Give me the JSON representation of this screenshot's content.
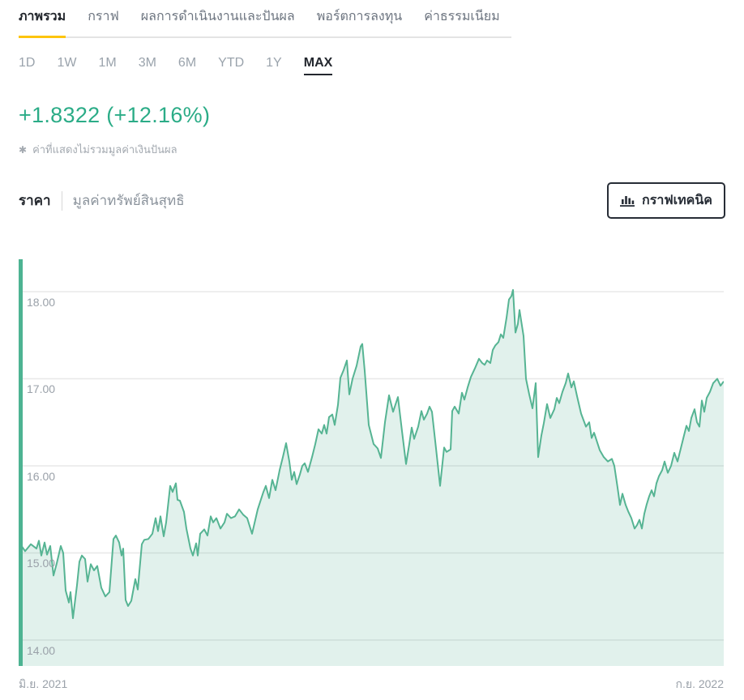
{
  "tabs": {
    "items": [
      {
        "label": "ภาพรวม",
        "active": true
      },
      {
        "label": "กราฟ",
        "active": false
      },
      {
        "label": "ผลการดำเนินงานและปันผล",
        "active": false
      },
      {
        "label": "พอร์ตการลงทุน",
        "active": false
      },
      {
        "label": "ค่าธรรมเนียม",
        "active": false
      }
    ]
  },
  "ranges": {
    "items": [
      {
        "label": "1D"
      },
      {
        "label": "1W"
      },
      {
        "label": "1M"
      },
      {
        "label": "3M"
      },
      {
        "label": "6M"
      },
      {
        "label": "YTD"
      },
      {
        "label": "1Y"
      },
      {
        "label": "MAX"
      }
    ],
    "active": "MAX"
  },
  "change": {
    "value": "+1.8322 (+12.16%)"
  },
  "note": {
    "marker": "✱",
    "text": "ค่าที่แสดงไม่รวมมูลค่าเงินปันผล"
  },
  "series_toggle": {
    "price_label": "ราคา",
    "nav_label": "มูลค่าทรัพย์สินสุทธิ"
  },
  "technical_button": {
    "label": "กราฟเทคนิค",
    "icon": "bar-chart-icon"
  },
  "colors": {
    "accent_yellow": "#fdc40e",
    "positive_green": "#2bac87",
    "inactive_gray": "#9aa3ac",
    "dark_text": "#22262c"
  },
  "chart_data": {
    "type": "area",
    "title": "",
    "xlabel": "",
    "ylabel": "",
    "legend": "none",
    "grid": "horizontal",
    "x_axis": {
      "start_label": "มิ.ย. 2021",
      "end_label": "ก.ย. 2022"
    },
    "y_axis": {
      "ticks": [
        {
          "value": 18.0,
          "label": "18.00"
        },
        {
          "value": 17.0,
          "label": "17.00"
        },
        {
          "value": 16.0,
          "label": "16.00"
        },
        {
          "value": 15.0,
          "label": "15.00"
        },
        {
          "value": 14.0,
          "label": "14.00"
        }
      ]
    },
    "y_scale": {
      "min": 13.702,
      "max": 18.372
    },
    "line_color": "#56b493",
    "fill_color": "rgba(86,180,147,0.18)",
    "grid_color": "#e8e8e8",
    "axis_bar_color": "#4db392",
    "points": [
      [
        0,
        15.13
      ],
      [
        8,
        15.02
      ],
      [
        15,
        15.1
      ],
      [
        22,
        15.05
      ],
      [
        25,
        15.14
      ],
      [
        28,
        14.97
      ],
      [
        32,
        15.12
      ],
      [
        35,
        14.98
      ],
      [
        39,
        15.08
      ],
      [
        43,
        14.74
      ],
      [
        47,
        14.88
      ],
      [
        52,
        15.08
      ],
      [
        55,
        15.0
      ],
      [
        58,
        14.57
      ],
      [
        62,
        14.43
      ],
      [
        64,
        14.55
      ],
      [
        67,
        14.25
      ],
      [
        72,
        14.63
      ],
      [
        75,
        14.9
      ],
      [
        78,
        14.97
      ],
      [
        82,
        14.93
      ],
      [
        85,
        14.67
      ],
      [
        89,
        14.87
      ],
      [
        93,
        14.8
      ],
      [
        97,
        14.85
      ],
      [
        102,
        14.6
      ],
      [
        107,
        14.5
      ],
      [
        112,
        14.55
      ],
      [
        117,
        15.16
      ],
      [
        120,
        15.2
      ],
      [
        124,
        15.12
      ],
      [
        127,
        14.97
      ],
      [
        129,
        15.05
      ],
      [
        132,
        14.46
      ],
      [
        135,
        14.39
      ],
      [
        139,
        14.45
      ],
      [
        144,
        14.7
      ],
      [
        147,
        14.58
      ],
      [
        152,
        15.1
      ],
      [
        155,
        15.15
      ],
      [
        160,
        15.16
      ],
      [
        165,
        15.22
      ],
      [
        169,
        15.4
      ],
      [
        172,
        15.25
      ],
      [
        175,
        15.42
      ],
      [
        179,
        15.19
      ],
      [
        182,
        15.35
      ],
      [
        187,
        15.77
      ],
      [
        190,
        15.7
      ],
      [
        194,
        15.8
      ],
      [
        196,
        15.61
      ],
      [
        199,
        15.6
      ],
      [
        204,
        15.47
      ],
      [
        207,
        15.28
      ],
      [
        212,
        15.05
      ],
      [
        215,
        14.97
      ],
      [
        219,
        15.11
      ],
      [
        221,
        14.97
      ],
      [
        224,
        15.22
      ],
      [
        229,
        15.27
      ],
      [
        233,
        15.2
      ],
      [
        237,
        15.42
      ],
      [
        240,
        15.35
      ],
      [
        244,
        15.4
      ],
      [
        249,
        15.28
      ],
      [
        254,
        15.35
      ],
      [
        257,
        15.45
      ],
      [
        262,
        15.4
      ],
      [
        267,
        15.42
      ],
      [
        272,
        15.5
      ],
      [
        277,
        15.44
      ],
      [
        282,
        15.4
      ],
      [
        288,
        15.22
      ],
      [
        295,
        15.5
      ],
      [
        302,
        15.7
      ],
      [
        305,
        15.77
      ],
      [
        309,
        15.63
      ],
      [
        313,
        15.84
      ],
      [
        317,
        15.72
      ],
      [
        322,
        15.95
      ],
      [
        326,
        16.1
      ],
      [
        330,
        16.26
      ],
      [
        334,
        16.05
      ],
      [
        337,
        15.84
      ],
      [
        340,
        15.93
      ],
      [
        343,
        15.79
      ],
      [
        347,
        15.9
      ],
      [
        350,
        16.0
      ],
      [
        353,
        16.03
      ],
      [
        357,
        15.93
      ],
      [
        362,
        16.1
      ],
      [
        366,
        16.25
      ],
      [
        370,
        16.42
      ],
      [
        374,
        16.37
      ],
      [
        377,
        16.47
      ],
      [
        380,
        16.37
      ],
      [
        383,
        16.56
      ],
      [
        387,
        16.59
      ],
      [
        390,
        16.47
      ],
      [
        394,
        16.7
      ],
      [
        397,
        17.01
      ],
      [
        401,
        17.1
      ],
      [
        405,
        17.21
      ],
      [
        408,
        16.82
      ],
      [
        412,
        17.0
      ],
      [
        417,
        17.15
      ],
      [
        422,
        17.37
      ],
      [
        424,
        17.4
      ],
      [
        427,
        17.09
      ],
      [
        432,
        16.47
      ],
      [
        438,
        16.25
      ],
      [
        443,
        16.2
      ],
      [
        447,
        16.09
      ],
      [
        452,
        16.5
      ],
      [
        457,
        16.81
      ],
      [
        462,
        16.62
      ],
      [
        468,
        16.79
      ],
      [
        473,
        16.4
      ],
      [
        478,
        16.02
      ],
      [
        482,
        16.25
      ],
      [
        485,
        16.44
      ],
      [
        488,
        16.31
      ],
      [
        493,
        16.45
      ],
      [
        497,
        16.63
      ],
      [
        500,
        16.53
      ],
      [
        504,
        16.6
      ],
      [
        507,
        16.68
      ],
      [
        510,
        16.62
      ],
      [
        515,
        16.2
      ],
      [
        520,
        15.77
      ],
      [
        525,
        16.21
      ],
      [
        528,
        16.16
      ],
      [
        533,
        16.19
      ],
      [
        535,
        16.63
      ],
      [
        538,
        16.68
      ],
      [
        543,
        16.6
      ],
      [
        547,
        16.84
      ],
      [
        550,
        16.76
      ],
      [
        554,
        16.9
      ],
      [
        558,
        17.02
      ],
      [
        563,
        17.12
      ],
      [
        568,
        17.23
      ],
      [
        572,
        17.18
      ],
      [
        575,
        17.16
      ],
      [
        578,
        17.21
      ],
      [
        582,
        17.18
      ],
      [
        585,
        17.33
      ],
      [
        588,
        17.38
      ],
      [
        592,
        17.42
      ],
      [
        595,
        17.51
      ],
      [
        598,
        17.47
      ],
      [
        602,
        17.7
      ],
      [
        605,
        17.91
      ],
      [
        608,
        17.95
      ],
      [
        610,
        18.02
      ],
      [
        613,
        17.53
      ],
      [
        616,
        17.63
      ],
      [
        618,
        17.79
      ],
      [
        620,
        17.67
      ],
      [
        623,
        17.49
      ],
      [
        626,
        17.0
      ],
      [
        630,
        16.82
      ],
      [
        634,
        16.66
      ],
      [
        638,
        16.95
      ],
      [
        641,
        16.1
      ],
      [
        645,
        16.35
      ],
      [
        648,
        16.49
      ],
      [
        652,
        16.71
      ],
      [
        656,
        16.55
      ],
      [
        661,
        16.65
      ],
      [
        664,
        16.78
      ],
      [
        667,
        16.72
      ],
      [
        671,
        16.85
      ],
      [
        675,
        16.95
      ],
      [
        678,
        17.06
      ],
      [
        682,
        16.9
      ],
      [
        685,
        16.97
      ],
      [
        689,
        16.8
      ],
      [
        694,
        16.6
      ],
      [
        700,
        16.45
      ],
      [
        704,
        16.5
      ],
      [
        707,
        16.32
      ],
      [
        710,
        16.38
      ],
      [
        717,
        16.18
      ],
      [
        722,
        16.1
      ],
      [
        727,
        16.05
      ],
      [
        732,
        16.08
      ],
      [
        735,
        16.0
      ],
      [
        739,
        15.75
      ],
      [
        742,
        15.55
      ],
      [
        745,
        15.68
      ],
      [
        749,
        15.55
      ],
      [
        752,
        15.48
      ],
      [
        756,
        15.4
      ],
      [
        760,
        15.28
      ],
      [
        763,
        15.32
      ],
      [
        766,
        15.38
      ],
      [
        769,
        15.28
      ],
      [
        772,
        15.45
      ],
      [
        775,
        15.56
      ],
      [
        778,
        15.65
      ],
      [
        781,
        15.72
      ],
      [
        784,
        15.65
      ],
      [
        787,
        15.8
      ],
      [
        790,
        15.88
      ],
      [
        794,
        15.95
      ],
      [
        797,
        16.05
      ],
      [
        801,
        15.92
      ],
      [
        805,
        16.0
      ],
      [
        809,
        16.15
      ],
      [
        813,
        16.05
      ],
      [
        817,
        16.2
      ],
      [
        821,
        16.35
      ],
      [
        824,
        16.46
      ],
      [
        827,
        16.4
      ],
      [
        830,
        16.55
      ],
      [
        834,
        16.65
      ],
      [
        837,
        16.5
      ],
      [
        840,
        16.45
      ],
      [
        843,
        16.75
      ],
      [
        846,
        16.62
      ],
      [
        849,
        16.78
      ],
      [
        853,
        16.85
      ],
      [
        857,
        16.95
      ],
      [
        862,
        17.0
      ],
      [
        866,
        16.92
      ],
      [
        870,
        16.97
      ]
    ]
  }
}
